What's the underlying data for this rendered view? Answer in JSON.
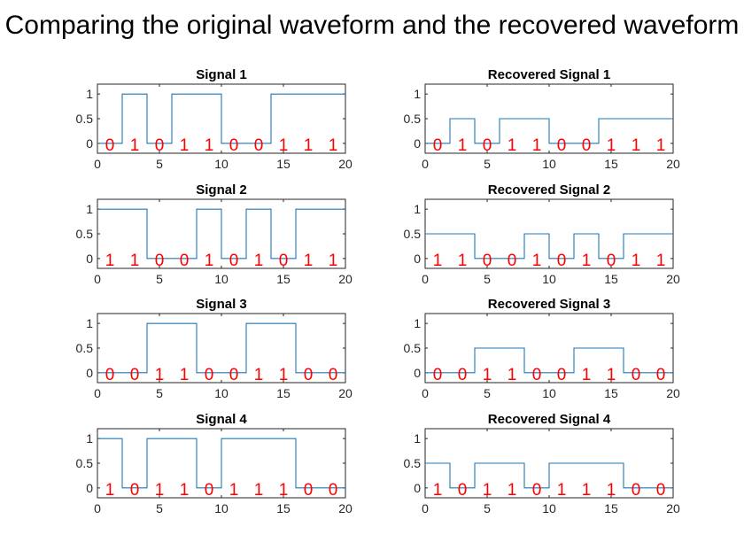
{
  "figure_title": "Comparing the original waveform and the recovered waveform",
  "colors": {
    "line": "#1f77b4",
    "bits": "#ff0000",
    "axis": "#262626",
    "text": "#262626"
  },
  "chart_data": [
    {
      "type": "line",
      "title": "Signal 1",
      "xlim": [
        0,
        20
      ],
      "ylim": [
        -0.2,
        1.2
      ],
      "xticks": [
        0,
        5,
        10,
        15,
        20
      ],
      "yticks": [
        0,
        0.5,
        1
      ],
      "bits": [
        0,
        1,
        0,
        1,
        1,
        0,
        0,
        1,
        1,
        1
      ],
      "bit_duration": 2,
      "amplitude": 1,
      "grid": false,
      "legend": "none"
    },
    {
      "type": "line",
      "title": "Recovered Signal 1",
      "xlim": [
        0,
        20
      ],
      "ylim": [
        -0.2,
        1.2
      ],
      "xticks": [
        0,
        5,
        10,
        15,
        20
      ],
      "yticks": [
        0,
        0.5,
        1
      ],
      "bits": [
        0,
        1,
        0,
        1,
        1,
        0,
        0,
        1,
        1,
        1
      ],
      "bit_duration": 2,
      "amplitude": 0.5,
      "grid": false,
      "legend": "none"
    },
    {
      "type": "line",
      "title": "Signal 2",
      "xlim": [
        0,
        20
      ],
      "ylim": [
        -0.2,
        1.2
      ],
      "xticks": [
        0,
        5,
        10,
        15,
        20
      ],
      "yticks": [
        0,
        0.5,
        1
      ],
      "bits": [
        1,
        1,
        0,
        0,
        1,
        0,
        1,
        0,
        1,
        1
      ],
      "bit_duration": 2,
      "amplitude": 1,
      "grid": false,
      "legend": "none"
    },
    {
      "type": "line",
      "title": "Recovered Signal 2",
      "xlim": [
        0,
        20
      ],
      "ylim": [
        -0.2,
        1.2
      ],
      "xticks": [
        0,
        5,
        10,
        15,
        20
      ],
      "yticks": [
        0,
        0.5,
        1
      ],
      "bits": [
        1,
        1,
        0,
        0,
        1,
        0,
        1,
        0,
        1,
        1
      ],
      "bit_duration": 2,
      "amplitude": 0.5,
      "grid": false,
      "legend": "none"
    },
    {
      "type": "line",
      "title": "Signal 3",
      "xlim": [
        0,
        20
      ],
      "ylim": [
        -0.2,
        1.2
      ],
      "xticks": [
        0,
        5,
        10,
        15,
        20
      ],
      "yticks": [
        0,
        0.5,
        1
      ],
      "bits": [
        0,
        0,
        1,
        1,
        0,
        0,
        1,
        1,
        0,
        0
      ],
      "bit_duration": 2,
      "amplitude": 1,
      "grid": false,
      "legend": "none"
    },
    {
      "type": "line",
      "title": "Recovered Signal 3",
      "xlim": [
        0,
        20
      ],
      "ylim": [
        -0.2,
        1.2
      ],
      "xticks": [
        0,
        5,
        10,
        15,
        20
      ],
      "yticks": [
        0,
        0.5,
        1
      ],
      "bits": [
        0,
        0,
        1,
        1,
        0,
        0,
        1,
        1,
        0,
        0
      ],
      "bit_duration": 2,
      "amplitude": 0.5,
      "grid": false,
      "legend": "none"
    },
    {
      "type": "line",
      "title": "Signal 4",
      "xlim": [
        0,
        20
      ],
      "ylim": [
        -0.2,
        1.2
      ],
      "xticks": [
        0,
        5,
        10,
        15,
        20
      ],
      "yticks": [
        0,
        0.5,
        1
      ],
      "bits": [
        1,
        0,
        1,
        1,
        0,
        1,
        1,
        1,
        0,
        0
      ],
      "bit_duration": 2,
      "amplitude": 1,
      "grid": false,
      "legend": "none"
    },
    {
      "type": "line",
      "title": "Recovered Signal 4",
      "xlim": [
        0,
        20
      ],
      "ylim": [
        -0.2,
        1.2
      ],
      "xticks": [
        0,
        5,
        10,
        15,
        20
      ],
      "yticks": [
        0,
        0.5,
        1
      ],
      "bits": [
        1,
        0,
        1,
        1,
        0,
        1,
        1,
        1,
        0,
        0
      ],
      "bit_duration": 2,
      "amplitude": 0.5,
      "grid": false,
      "legend": "none"
    }
  ]
}
